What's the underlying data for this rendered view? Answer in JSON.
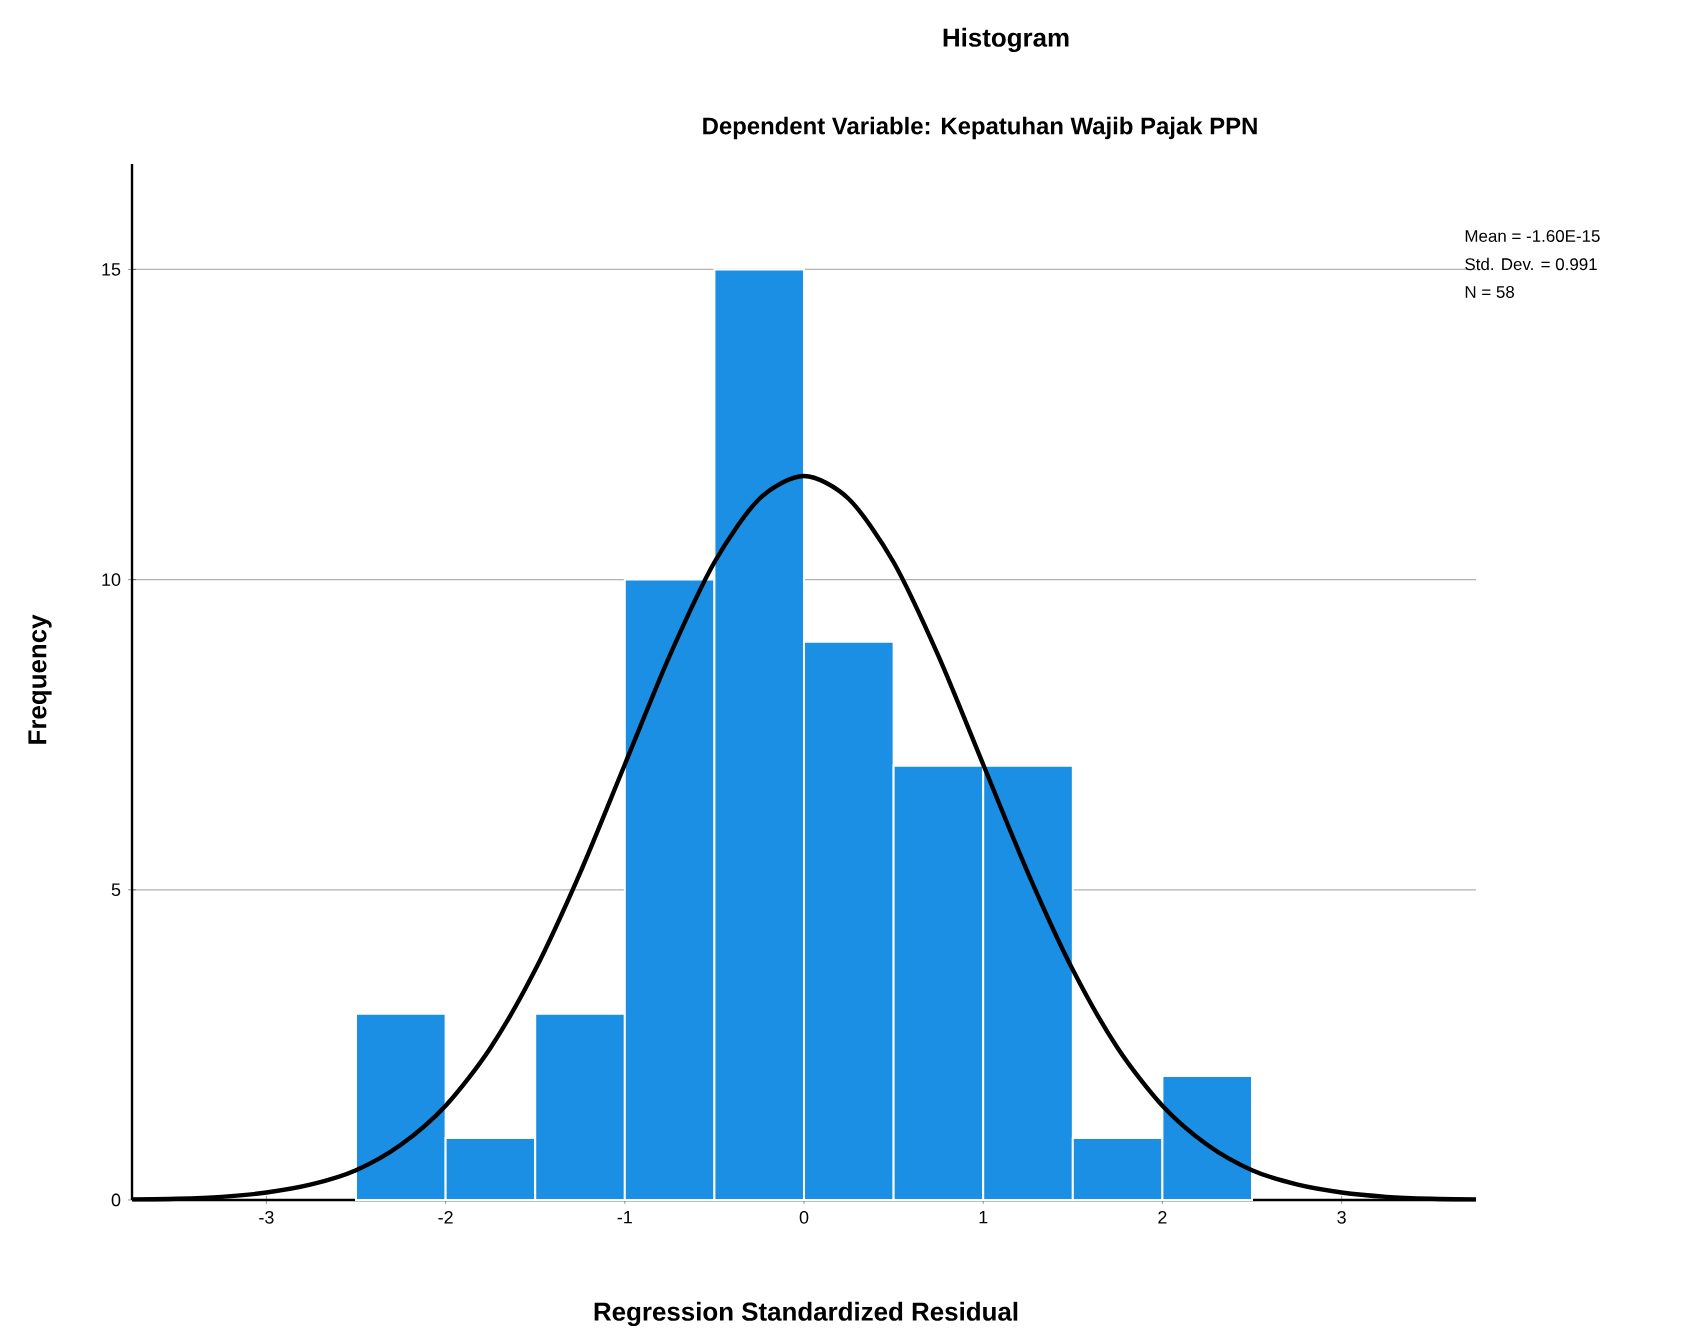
{
  "chart_data": {
    "type": "histogram",
    "title": "Histogram",
    "subtitle": "Dependent Variable: Kepatuhan Wajib Pajak PPN",
    "xlabel": "Regression Standardized Residual",
    "ylabel": "Frequency",
    "annotations": [
      "Mean = -1.60E-15",
      "Std. Dev. = 0.991",
      "N = 58"
    ],
    "series": [
      {
        "type": "histogram",
        "color": "#1a8fe3",
        "bins": [
          -2.5,
          -2,
          -1.5,
          -1,
          -0.5,
          0,
          0.5,
          1,
          1.5,
          2,
          2.5
        ],
        "values": [
          3,
          1,
          3,
          10,
          15,
          9,
          7,
          7,
          1,
          2
        ]
      },
      {
        "type": "line",
        "color": "#000000",
        "x": [
          -3.75,
          -3.5,
          -3.25,
          -3,
          -2.75,
          -2.5,
          -2.25,
          -2,
          -1.75,
          -1.5,
          -1.25,
          -1,
          -0.75,
          -0.5,
          -0.25,
          0,
          0.25,
          0.5,
          0.75,
          1,
          1.25,
          1.5,
          1.75,
          2,
          2.25,
          2.5,
          2.75,
          3,
          3.25,
          3.5,
          3.75
        ],
        "values": [
          0.01,
          0.02,
          0.05,
          0.12,
          0.25,
          0.48,
          0.89,
          1.52,
          2.45,
          3.71,
          5.27,
          7.02,
          8.77,
          10.28,
          11.3,
          11.67,
          11.3,
          10.28,
          8.77,
          7.02,
          5.27,
          3.71,
          2.45,
          1.52,
          0.89,
          0.48,
          0.25,
          0.12,
          0.05,
          0.02,
          0.01
        ]
      }
    ],
    "xlim": [
      -3.75,
      3.75
    ],
    "ylim": [
      0,
      16.7
    ],
    "xticks": [
      -3,
      -2,
      -1,
      0,
      1,
      2,
      3
    ],
    "yticks": [
      0,
      5,
      10,
      15
    ],
    "grid": "y"
  }
}
